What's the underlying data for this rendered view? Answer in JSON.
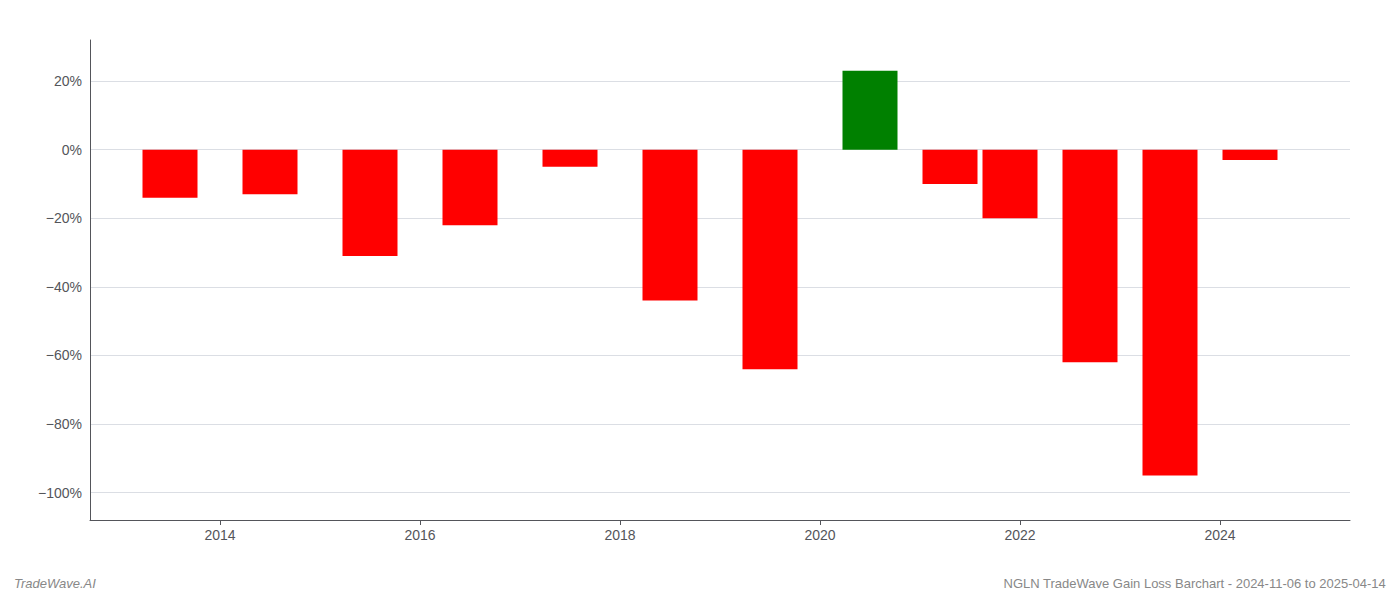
{
  "chart_data": {
    "type": "bar",
    "x": [
      2013.5,
      2014.5,
      2015.5,
      2016.5,
      2017.5,
      2018.5,
      2019.5,
      2020.5,
      2021.3,
      2021.9,
      2022.7,
      2023.5,
      2024.3
    ],
    "values": [
      -0.14,
      -0.13,
      -0.31,
      -0.22,
      -0.05,
      -0.44,
      -0.64,
      0.23,
      -0.1,
      -0.2,
      -0.62,
      -0.95,
      -0.03
    ],
    "colors": [
      "#ff0000",
      "#ff0000",
      "#ff0000",
      "#ff0000",
      "#ff0000",
      "#ff0000",
      "#ff0000",
      "#008000",
      "#ff0000",
      "#ff0000",
      "#ff0000",
      "#ff0000",
      "#ff0000"
    ],
    "xlim": [
      2012.7,
      2025.3
    ],
    "ylim": [
      -1.08,
      0.32
    ],
    "xticks": [
      2014,
      2016,
      2018,
      2020,
      2022,
      2024
    ],
    "yticks": [
      {
        "value": 0.2,
        "label": "20%"
      },
      {
        "value": 0.0,
        "label": "0%"
      },
      {
        "value": -0.2,
        "label": "−20%"
      },
      {
        "value": -0.4,
        "label": "−40%"
      },
      {
        "value": -0.6,
        "label": "−60%"
      },
      {
        "value": -0.8,
        "label": "−80%"
      },
      {
        "value": -1.0,
        "label": "−100%"
      }
    ],
    "grid": true,
    "annotations": [
      "TradeWave.AI",
      "NGLN TradeWave Gain Loss Barchart - 2024-11-06 to 2025-04-14"
    ]
  }
}
